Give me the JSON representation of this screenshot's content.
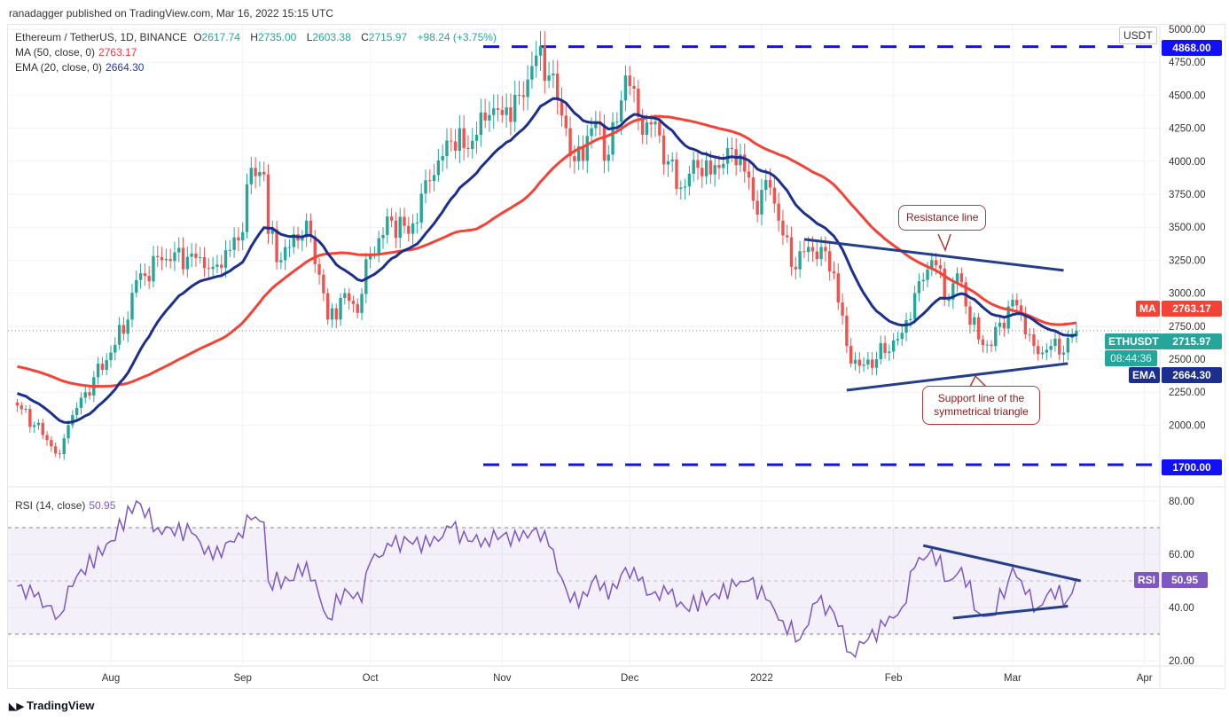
{
  "header": {
    "published": "ranadagger published on TradingView.com, Mar 16, 2022 15:15 UTC"
  },
  "legend": {
    "symbol": "Ethereum / TetherUS, 1D, BINANCE",
    "o_label": "O",
    "o": "2617.74",
    "h_label": "H",
    "h": "2735.00",
    "l_label": "L",
    "l": "2603.38",
    "c_label": "C",
    "c": "2715.97",
    "change": "+98.24 (+3.75%)",
    "ma_label": "MA (50, close, 0)",
    "ma_value": "2763.17",
    "ema_label": "EMA (20, close, 0)",
    "ema_value": "2664.30",
    "rsi_label": "RSI (14, close)",
    "rsi_value": "50.95"
  },
  "tags": {
    "currency": "USDT",
    "top_level": "4868.00",
    "bottom_level": "1700.00",
    "ma_name": "MA",
    "ma": "2763.17",
    "sym": "ETHUSDT",
    "price": "2715.97",
    "countdown": "08:44:36",
    "ema_name": "EMA",
    "ema": "2664.30",
    "rsi_name": "RSI",
    "rsi": "50.95"
  },
  "annotations": {
    "resistance": "Resistance line",
    "support": "Support line of the symmetrical triangle"
  },
  "footer": {
    "logo": "TradingView"
  },
  "colors": {
    "up": "#26a69a",
    "down": "#ef5350",
    "ma": "#f44336",
    "ema": "#1b2f8f",
    "rsi": "#7e57c2",
    "level": "#1010ff",
    "trend": "#233f8c"
  },
  "chart_data": {
    "type": "candlestick",
    "title": "Ethereum / TetherUS, 1D, BINANCE",
    "ylim": [
      1650,
      5000
    ],
    "yticks": [
      2000,
      2250,
      2500,
      2750,
      3000,
      3250,
      3500,
      3750,
      4000,
      4250,
      4500,
      4750,
      5000
    ],
    "ytick_labels": [
      "2000.00",
      "2250.00",
      "2500.00",
      "2750.00",
      "3000.00",
      "3250.00",
      "3500.00",
      "3750.00",
      "4000.00",
      "4250.00",
      "4500.00",
      "4750.00",
      "5000.00"
    ],
    "xticks": [
      {
        "date": "2021-08-01",
        "label": "Aug"
      },
      {
        "date": "2021-09-01",
        "label": "Sep"
      },
      {
        "date": "2021-10-01",
        "label": "Oct"
      },
      {
        "date": "2021-11-01",
        "label": "Nov"
      },
      {
        "date": "2021-12-01",
        "label": "Dec"
      },
      {
        "date": "2022-01-01",
        "label": "2022"
      },
      {
        "date": "2022-02-01",
        "label": "Feb"
      },
      {
        "date": "2022-03-01",
        "label": "Mar"
      },
      {
        "date": "2022-04-01",
        "label": "Apr"
      }
    ],
    "close_anchors": [
      [
        "2021-07-10",
        2150
      ],
      [
        "2021-07-14",
        2000
      ],
      [
        "2021-07-20",
        1780
      ],
      [
        "2021-07-22",
        2000
      ],
      [
        "2021-07-26",
        2250
      ],
      [
        "2021-08-01",
        2550
      ],
      [
        "2021-08-05",
        2800
      ],
      [
        "2021-08-07",
        3100
      ],
      [
        "2021-08-13",
        3250
      ],
      [
        "2021-08-20",
        3300
      ],
      [
        "2021-08-25",
        3200
      ],
      [
        "2021-08-31",
        3400
      ],
      [
        "2021-09-03",
        3950
      ],
      [
        "2021-09-06",
        3900
      ],
      [
        "2021-09-07",
        3450
      ],
      [
        "2021-09-10",
        3250
      ],
      [
        "2021-09-16",
        3550
      ],
      [
        "2021-09-20",
        3000
      ],
      [
        "2021-09-21",
        2800
      ],
      [
        "2021-09-25",
        3000
      ],
      [
        "2021-09-28",
        2850
      ],
      [
        "2021-10-01",
        3300
      ],
      [
        "2021-10-06",
        3550
      ],
      [
        "2021-10-10",
        3450
      ],
      [
        "2021-10-15",
        3850
      ],
      [
        "2021-10-20",
        4150
      ],
      [
        "2021-10-23",
        4100
      ],
      [
        "2021-10-26",
        4200
      ],
      [
        "2021-10-29",
        4350
      ],
      [
        "2021-11-01",
        4350
      ],
      [
        "2021-11-05",
        4500
      ],
      [
        "2021-11-09",
        4800
      ],
      [
        "2021-11-12",
        4650
      ],
      [
        "2021-11-16",
        4250
      ],
      [
        "2021-11-18",
        4000
      ],
      [
        "2021-11-23",
        4300
      ],
      [
        "2021-11-26",
        4050
      ],
      [
        "2021-11-28",
        4300
      ],
      [
        "2021-11-30",
        4650
      ],
      [
        "2021-12-02",
        4550
      ],
      [
        "2021-12-04",
        4200
      ],
      [
        "2021-12-07",
        4300
      ],
      [
        "2021-12-10",
        4000
      ],
      [
        "2021-12-13",
        3800
      ],
      [
        "2021-12-17",
        3950
      ],
      [
        "2021-12-20",
        3900
      ],
      [
        "2021-12-24",
        4100
      ],
      [
        "2021-12-27",
        4050
      ],
      [
        "2021-12-30",
        3700
      ],
      [
        "2022-01-03",
        3800
      ],
      [
        "2022-01-05",
        3550
      ],
      [
        "2022-01-08",
        3200
      ],
      [
        "2022-01-12",
        3350
      ],
      [
        "2022-01-15",
        3350
      ],
      [
        "2022-01-18",
        3150
      ],
      [
        "2022-01-21",
        2600
      ],
      [
        "2022-01-24",
        2450
      ],
      [
        "2022-01-28",
        2500
      ],
      [
        "2022-02-03",
        2700
      ],
      [
        "2022-02-06",
        3000
      ],
      [
        "2022-02-08",
        3100
      ],
      [
        "2022-02-10",
        3250
      ],
      [
        "2022-02-14",
        2950
      ],
      [
        "2022-02-16",
        3150
      ],
      [
        "2022-02-18",
        2900
      ],
      [
        "2022-02-21",
        2650
      ],
      [
        "2022-02-24",
        2600
      ],
      [
        "2022-02-28",
        2900
      ],
      [
        "2022-03-01",
        2950
      ],
      [
        "2022-03-03",
        2850
      ],
      [
        "2022-03-06",
        2600
      ],
      [
        "2022-03-08",
        2550
      ],
      [
        "2022-03-10",
        2600
      ],
      [
        "2022-03-13",
        2550
      ],
      [
        "2022-03-16",
        2715.97
      ]
    ],
    "ma_seed": 2450,
    "ema_seed": 2250,
    "levels": [
      4868,
      1700
    ],
    "current_price": 2715.97,
    "resistance_line": [
      [
        "2022-01-11",
        3408
      ],
      [
        "2022-03-13",
        3173
      ]
    ],
    "support_line": [
      [
        "2022-01-21",
        2265
      ],
      [
        "2022-03-14",
        2467
      ]
    ],
    "rsi": {
      "ylim": [
        17,
        85
      ],
      "yticks": [
        20,
        40,
        60,
        80
      ],
      "ytick_labels": [
        "20.00",
        "40.00",
        "60.00",
        "80.00"
      ],
      "band": [
        30,
        70
      ],
      "anchors": [
        [
          "2021-07-10",
          48
        ],
        [
          "2021-07-14",
          44
        ],
        [
          "2021-07-20",
          37
        ],
        [
          "2021-07-22",
          48
        ],
        [
          "2021-08-01",
          65
        ],
        [
          "2021-08-07",
          80
        ],
        [
          "2021-08-12",
          70
        ],
        [
          "2021-08-20",
          68
        ],
        [
          "2021-08-25",
          58
        ],
        [
          "2021-08-31",
          68
        ],
        [
          "2021-09-03",
          73
        ],
        [
          "2021-09-06",
          72
        ],
        [
          "2021-09-07",
          50
        ],
        [
          "2021-09-12",
          50
        ],
        [
          "2021-09-16",
          57
        ],
        [
          "2021-09-21",
          36
        ],
        [
          "2021-09-25",
          47
        ],
        [
          "2021-09-29",
          42
        ],
        [
          "2021-10-01",
          57
        ],
        [
          "2021-10-06",
          63
        ],
        [
          "2021-10-10",
          65
        ],
        [
          "2021-10-15",
          63
        ],
        [
          "2021-10-20",
          70
        ],
        [
          "2021-10-24",
          65
        ],
        [
          "2021-10-28",
          66
        ],
        [
          "2021-11-01",
          67
        ],
        [
          "2021-11-05",
          65
        ],
        [
          "2021-11-09",
          70
        ],
        [
          "2021-11-12",
          63
        ],
        [
          "2021-11-16",
          47
        ],
        [
          "2021-11-19",
          40
        ],
        [
          "2021-11-23",
          52
        ],
        [
          "2021-11-26",
          43
        ],
        [
          "2021-11-30",
          55
        ],
        [
          "2021-12-03",
          50
        ],
        [
          "2021-12-06",
          45
        ],
        [
          "2021-12-10",
          45
        ],
        [
          "2021-12-14",
          40
        ],
        [
          "2021-12-20",
          44
        ],
        [
          "2021-12-26",
          48
        ],
        [
          "2021-12-29",
          50
        ],
        [
          "2022-01-02",
          43
        ],
        [
          "2022-01-06",
          35
        ],
        [
          "2022-01-10",
          28
        ],
        [
          "2022-01-14",
          42
        ],
        [
          "2022-01-18",
          38
        ],
        [
          "2022-01-22",
          23
        ],
        [
          "2022-01-26",
          28
        ],
        [
          "2022-01-30",
          33
        ],
        [
          "2022-02-03",
          40
        ],
        [
          "2022-02-06",
          55
        ],
        [
          "2022-02-10",
          62
        ],
        [
          "2022-02-14",
          50
        ],
        [
          "2022-02-17",
          55
        ],
        [
          "2022-02-21",
          38
        ],
        [
          "2022-02-24",
          37
        ],
        [
          "2022-02-28",
          50
        ],
        [
          "2022-03-01",
          55
        ],
        [
          "2022-03-04",
          45
        ],
        [
          "2022-03-07",
          40
        ],
        [
          "2022-03-10",
          47
        ],
        [
          "2022-03-14",
          43
        ],
        [
          "2022-03-16",
          50.95
        ]
      ],
      "upper_line": [
        [
          "2022-02-08",
          63.3
        ],
        [
          "2022-03-17",
          50
        ]
      ],
      "lower_line": [
        [
          "2022-02-15",
          36
        ],
        [
          "2022-03-14",
          40.5
        ]
      ]
    }
  }
}
